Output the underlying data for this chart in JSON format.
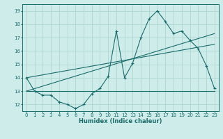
{
  "xlabel": "Humidex (Indice chaleur)",
  "bg_color": "#ceecea",
  "grid_color": "#aed6d2",
  "line_color": "#1a6b6b",
  "xlim": [
    -0.5,
    23.5
  ],
  "ylim": [
    11.5,
    19.5
  ],
  "xticks": [
    0,
    1,
    2,
    3,
    4,
    5,
    6,
    7,
    8,
    9,
    10,
    11,
    12,
    13,
    14,
    15,
    16,
    17,
    18,
    19,
    20,
    21,
    22,
    23
  ],
  "yticks": [
    12,
    13,
    14,
    15,
    16,
    17,
    18,
    19
  ],
  "line1_x": [
    0,
    1,
    2,
    3,
    4,
    5,
    6,
    7,
    8,
    9,
    10,
    11,
    12,
    13,
    14,
    15,
    16,
    17,
    18,
    19,
    20,
    21,
    22,
    23
  ],
  "line1_y": [
    14.0,
    13.0,
    12.7,
    12.7,
    12.2,
    12.0,
    11.7,
    12.0,
    12.8,
    13.2,
    14.1,
    17.5,
    14.0,
    15.1,
    17.0,
    18.4,
    19.0,
    18.2,
    17.3,
    17.5,
    16.8,
    16.2,
    14.9,
    13.2
  ],
  "line2_x": [
    0,
    23
  ],
  "line2_y": [
    13.0,
    13.0
  ],
  "line3_x": [
    0,
    23
  ],
  "line3_y": [
    13.0,
    17.3
  ],
  "line4_x": [
    0,
    23
  ],
  "line4_y": [
    14.0,
    16.5
  ]
}
